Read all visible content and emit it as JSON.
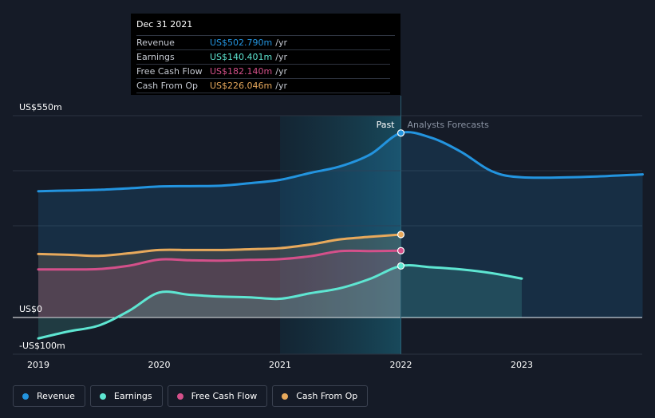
{
  "chart_data": {
    "type": "area",
    "ylim": [
      -100,
      550
    ],
    "y_tick_labels": [
      {
        "value": 550,
        "label": "US$550m"
      },
      {
        "value": 0,
        "label": "US$0"
      },
      {
        "value": -100,
        "label": "-US$100m"
      }
    ],
    "x_ticks": [
      {
        "value": 2019,
        "label": "2019"
      },
      {
        "value": 2020,
        "label": "2020"
      },
      {
        "value": 2021,
        "label": "2021"
      },
      {
        "value": 2022,
        "label": "2022"
      },
      {
        "value": 2023,
        "label": "2023"
      }
    ],
    "xlim": [
      2018.8,
      2024.0
    ],
    "past_end": 2022.0,
    "highlight_start": 2021.0,
    "past_label": "Past",
    "forecast_label": "Analysts Forecasts",
    "series": [
      {
        "name": "Revenue",
        "color": "#2394df",
        "points": [
          [
            2019.0,
            344
          ],
          [
            2019.25,
            346
          ],
          [
            2019.5,
            348
          ],
          [
            2019.75,
            352
          ],
          [
            2020.0,
            357
          ],
          [
            2020.25,
            358
          ],
          [
            2020.5,
            359
          ],
          [
            2020.75,
            366
          ],
          [
            2021.0,
            375
          ],
          [
            2021.25,
            394
          ],
          [
            2021.5,
            412
          ],
          [
            2021.75,
            445
          ],
          [
            2022.0,
            502.79
          ],
          [
            2022.25,
            490
          ],
          [
            2022.5,
            451
          ],
          [
            2022.75,
            399
          ],
          [
            2023.0,
            382
          ],
          [
            2023.5,
            383
          ],
          [
            2024.0,
            390
          ]
        ]
      },
      {
        "name": "Earnings",
        "color": "#5ee6d2",
        "points": [
          [
            2019.0,
            -57
          ],
          [
            2019.25,
            -38
          ],
          [
            2019.5,
            -22
          ],
          [
            2019.75,
            18
          ],
          [
            2020.0,
            68
          ],
          [
            2020.25,
            62
          ],
          [
            2020.5,
            57
          ],
          [
            2020.75,
            55
          ],
          [
            2021.0,
            51
          ],
          [
            2021.25,
            66
          ],
          [
            2021.5,
            80
          ],
          [
            2021.75,
            106
          ],
          [
            2022.0,
            140.401
          ],
          [
            2022.25,
            137
          ],
          [
            2022.5,
            131
          ],
          [
            2022.75,
            121
          ],
          [
            2023.0,
            106
          ]
        ]
      },
      {
        "name": "Free Cash Flow",
        "color": "#d4508a",
        "points": [
          [
            2019.0,
            131
          ],
          [
            2019.25,
            131
          ],
          [
            2019.5,
            132
          ],
          [
            2019.75,
            141
          ],
          [
            2020.0,
            158
          ],
          [
            2020.25,
            156
          ],
          [
            2020.5,
            155
          ],
          [
            2020.75,
            157
          ],
          [
            2021.0,
            159
          ],
          [
            2021.25,
            167
          ],
          [
            2021.5,
            181
          ],
          [
            2021.75,
            181
          ],
          [
            2022.0,
            182.14
          ]
        ]
      },
      {
        "name": "Cash From Op",
        "color": "#e7a95c",
        "points": [
          [
            2019.0,
            173
          ],
          [
            2019.25,
            171
          ],
          [
            2019.5,
            168
          ],
          [
            2019.75,
            175
          ],
          [
            2020.0,
            184
          ],
          [
            2020.25,
            184
          ],
          [
            2020.5,
            184
          ],
          [
            2020.75,
            186
          ],
          [
            2021.0,
            189
          ],
          [
            2021.25,
            199
          ],
          [
            2021.5,
            213
          ],
          [
            2021.75,
            220
          ],
          [
            2022.0,
            226.046
          ]
        ]
      }
    ]
  },
  "tooltip": {
    "date": "Dec 31 2021",
    "rows": [
      {
        "name": "Revenue",
        "value": "US$502.790m",
        "unit": "/yr",
        "color": "#2394df"
      },
      {
        "name": "Earnings",
        "value": "US$140.401m",
        "unit": "/yr",
        "color": "#5ee6d2"
      },
      {
        "name": "Free Cash Flow",
        "value": "US$182.140m",
        "unit": "/yr",
        "color": "#d4508a"
      },
      {
        "name": "Cash From Op",
        "value": "US$226.046m",
        "unit": "/yr",
        "color": "#e7a95c"
      }
    ]
  },
  "legend": [
    {
      "label": "Revenue",
      "color": "#2394df"
    },
    {
      "label": "Earnings",
      "color": "#5ee6d2"
    },
    {
      "label": "Free Cash Flow",
      "color": "#d4508a"
    },
    {
      "label": "Cash From Op",
      "color": "#e7a95c"
    }
  ]
}
